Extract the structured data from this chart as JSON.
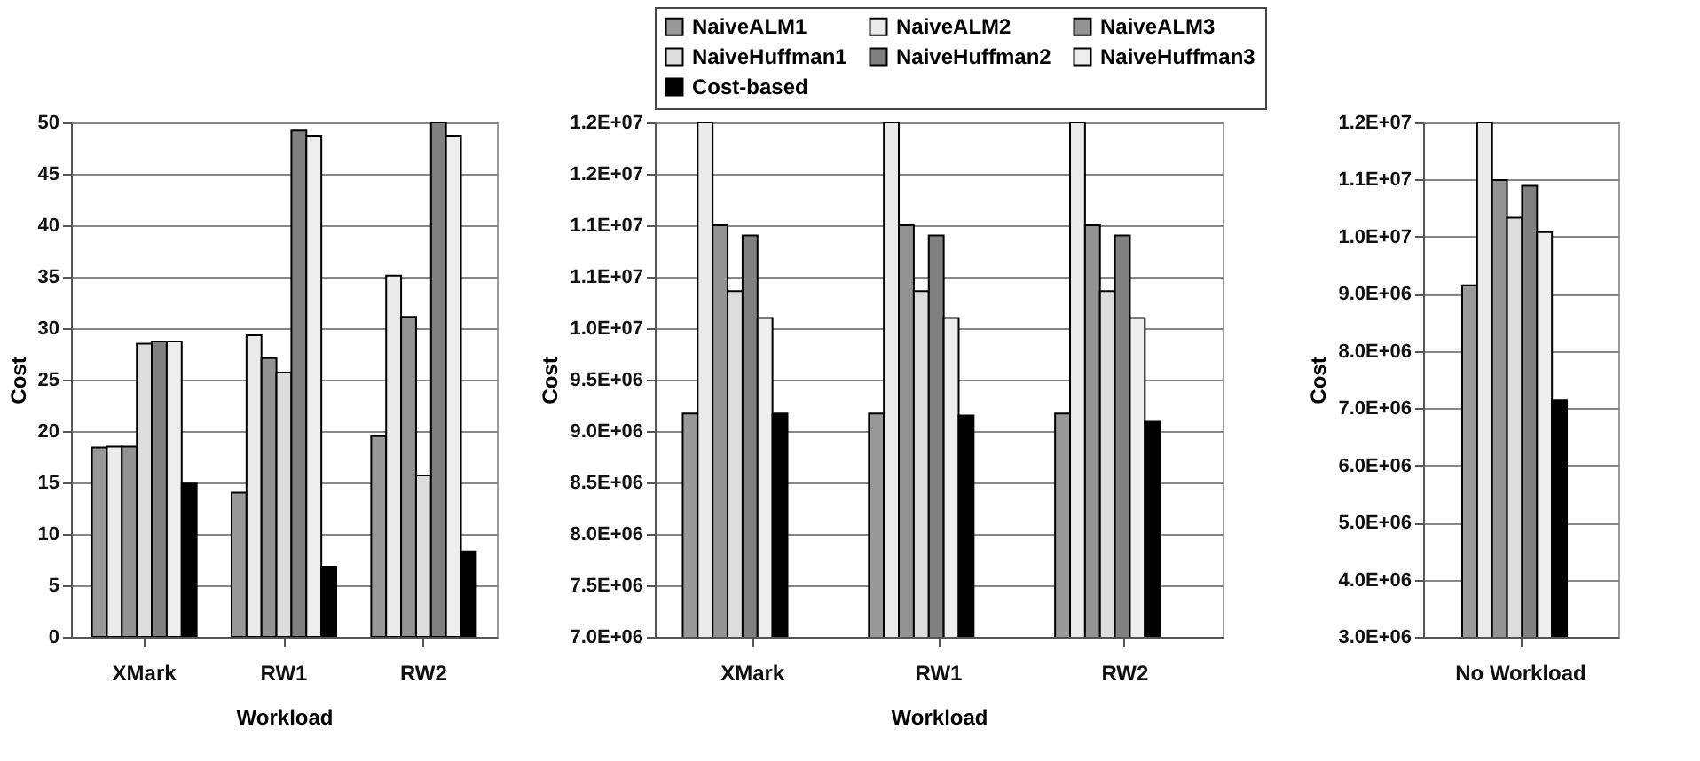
{
  "chart_data": [
    {
      "type": "bar",
      "ylabel": "Cost",
      "xlabel": "Workload",
      "categories": [
        "XMark",
        "RW1",
        "RW2"
      ],
      "ylim": [
        0,
        50
      ],
      "yticks": [
        0,
        5,
        10,
        15,
        20,
        25,
        30,
        35,
        40,
        45,
        50
      ],
      "grid": "y",
      "series": [
        {
          "color": "#999999",
          "values": [
            18.4,
            14.0,
            19.5
          ]
        },
        {
          "color": "#eaeaea",
          "values": [
            18.5,
            29.3,
            35.1
          ]
        },
        {
          "color": "#939393",
          "values": [
            18.5,
            27.1,
            31.1
          ]
        },
        {
          "color": "#dddddd",
          "values": [
            28.5,
            25.7,
            15.7
          ]
        },
        {
          "color": "#808080",
          "values": [
            28.7,
            49.2,
            50
          ]
        },
        {
          "color": "#eeeeee",
          "values": [
            28.7,
            48.7,
            48.7
          ]
        },
        {
          "color": "#000000",
          "values": [
            14.9,
            6.8,
            8.3
          ]
        }
      ]
    },
    {
      "type": "bar",
      "ylabel": "Cost",
      "xlabel": "Workload",
      "categories": [
        "XMark",
        "RW1",
        "RW2"
      ],
      "ylim": [
        7000000,
        12000000
      ],
      "yticks": [
        {
          "value": 7000000,
          "label": "7.0E+06"
        },
        {
          "value": 7500000,
          "label": "7.5E+06"
        },
        {
          "value": 8000000,
          "label": "8.0E+06"
        },
        {
          "value": 8500000,
          "label": "8.5E+06"
        },
        {
          "value": 9000000,
          "label": "9.0E+06"
        },
        {
          "value": 9500000,
          "label": "9.5E+06"
        },
        {
          "value": 10000000,
          "label": "1.0E+07"
        },
        {
          "value": 10500000,
          "label": "1.1E+07"
        },
        {
          "value": 11000000,
          "label": "1.1E+07"
        },
        {
          "value": 11500000,
          "label": "1.2E+07"
        },
        {
          "value": 12000000,
          "label": "1.2E+07"
        }
      ],
      "grid": "y",
      "legend": "top",
      "series": [
        {
          "name": "NaiveALM1",
          "color": "#999999",
          "values": [
            9170000,
            9170000,
            9170000
          ]
        },
        {
          "name": "NaiveALM2",
          "color": "#eaeaea",
          "values": [
            12000000,
            12000000,
            12000000
          ]
        },
        {
          "name": "NaiveALM3",
          "color": "#939393",
          "values": [
            11000000,
            11000000,
            11000000
          ]
        },
        {
          "name": "NaiveHuffman1",
          "color": "#dddddd",
          "values": [
            10360000,
            10360000,
            10360000
          ]
        },
        {
          "name": "NaiveHuffman2",
          "color": "#808080",
          "values": [
            10900000,
            10900000,
            10900000
          ]
        },
        {
          "name": "NaiveHuffman3",
          "color": "#eeeeee",
          "values": [
            10100000,
            10100000,
            10100000
          ]
        },
        {
          "name": "Cost-based",
          "color": "#000000",
          "values": [
            9170000,
            9150000,
            9090000
          ]
        }
      ]
    },
    {
      "type": "bar",
      "ylabel": "Cost",
      "categories": [
        "No Workload"
      ],
      "ylim": [
        3000000,
        12000000
      ],
      "yticks": [
        {
          "value": 3000000,
          "label": "3.0E+06"
        },
        {
          "value": 4000000,
          "label": "4.0E+06"
        },
        {
          "value": 5000000,
          "label": "5.0E+06"
        },
        {
          "value": 6000000,
          "label": "6.0E+06"
        },
        {
          "value": 7000000,
          "label": "7.0E+06"
        },
        {
          "value": 8000000,
          "label": "8.0E+06"
        },
        {
          "value": 9000000,
          "label": "9.0E+06"
        },
        {
          "value": 10000000,
          "label": "1.0E+07"
        },
        {
          "value": 11000000,
          "label": "1.1E+07"
        },
        {
          "value": 12000000,
          "label": "1.2E+07"
        }
      ],
      "grid": "y",
      "series": [
        {
          "color": "#999999",
          "values": [
            9150000
          ]
        },
        {
          "color": "#eaeaea",
          "values": [
            12000000
          ]
        },
        {
          "color": "#939393",
          "values": [
            10990000
          ]
        },
        {
          "color": "#dddddd",
          "values": [
            10330000
          ]
        },
        {
          "color": "#808080",
          "values": [
            10890000
          ]
        },
        {
          "color": "#eeeeee",
          "values": [
            10080000
          ]
        },
        {
          "color": "#000000",
          "values": [
            7140000
          ]
        }
      ]
    }
  ]
}
